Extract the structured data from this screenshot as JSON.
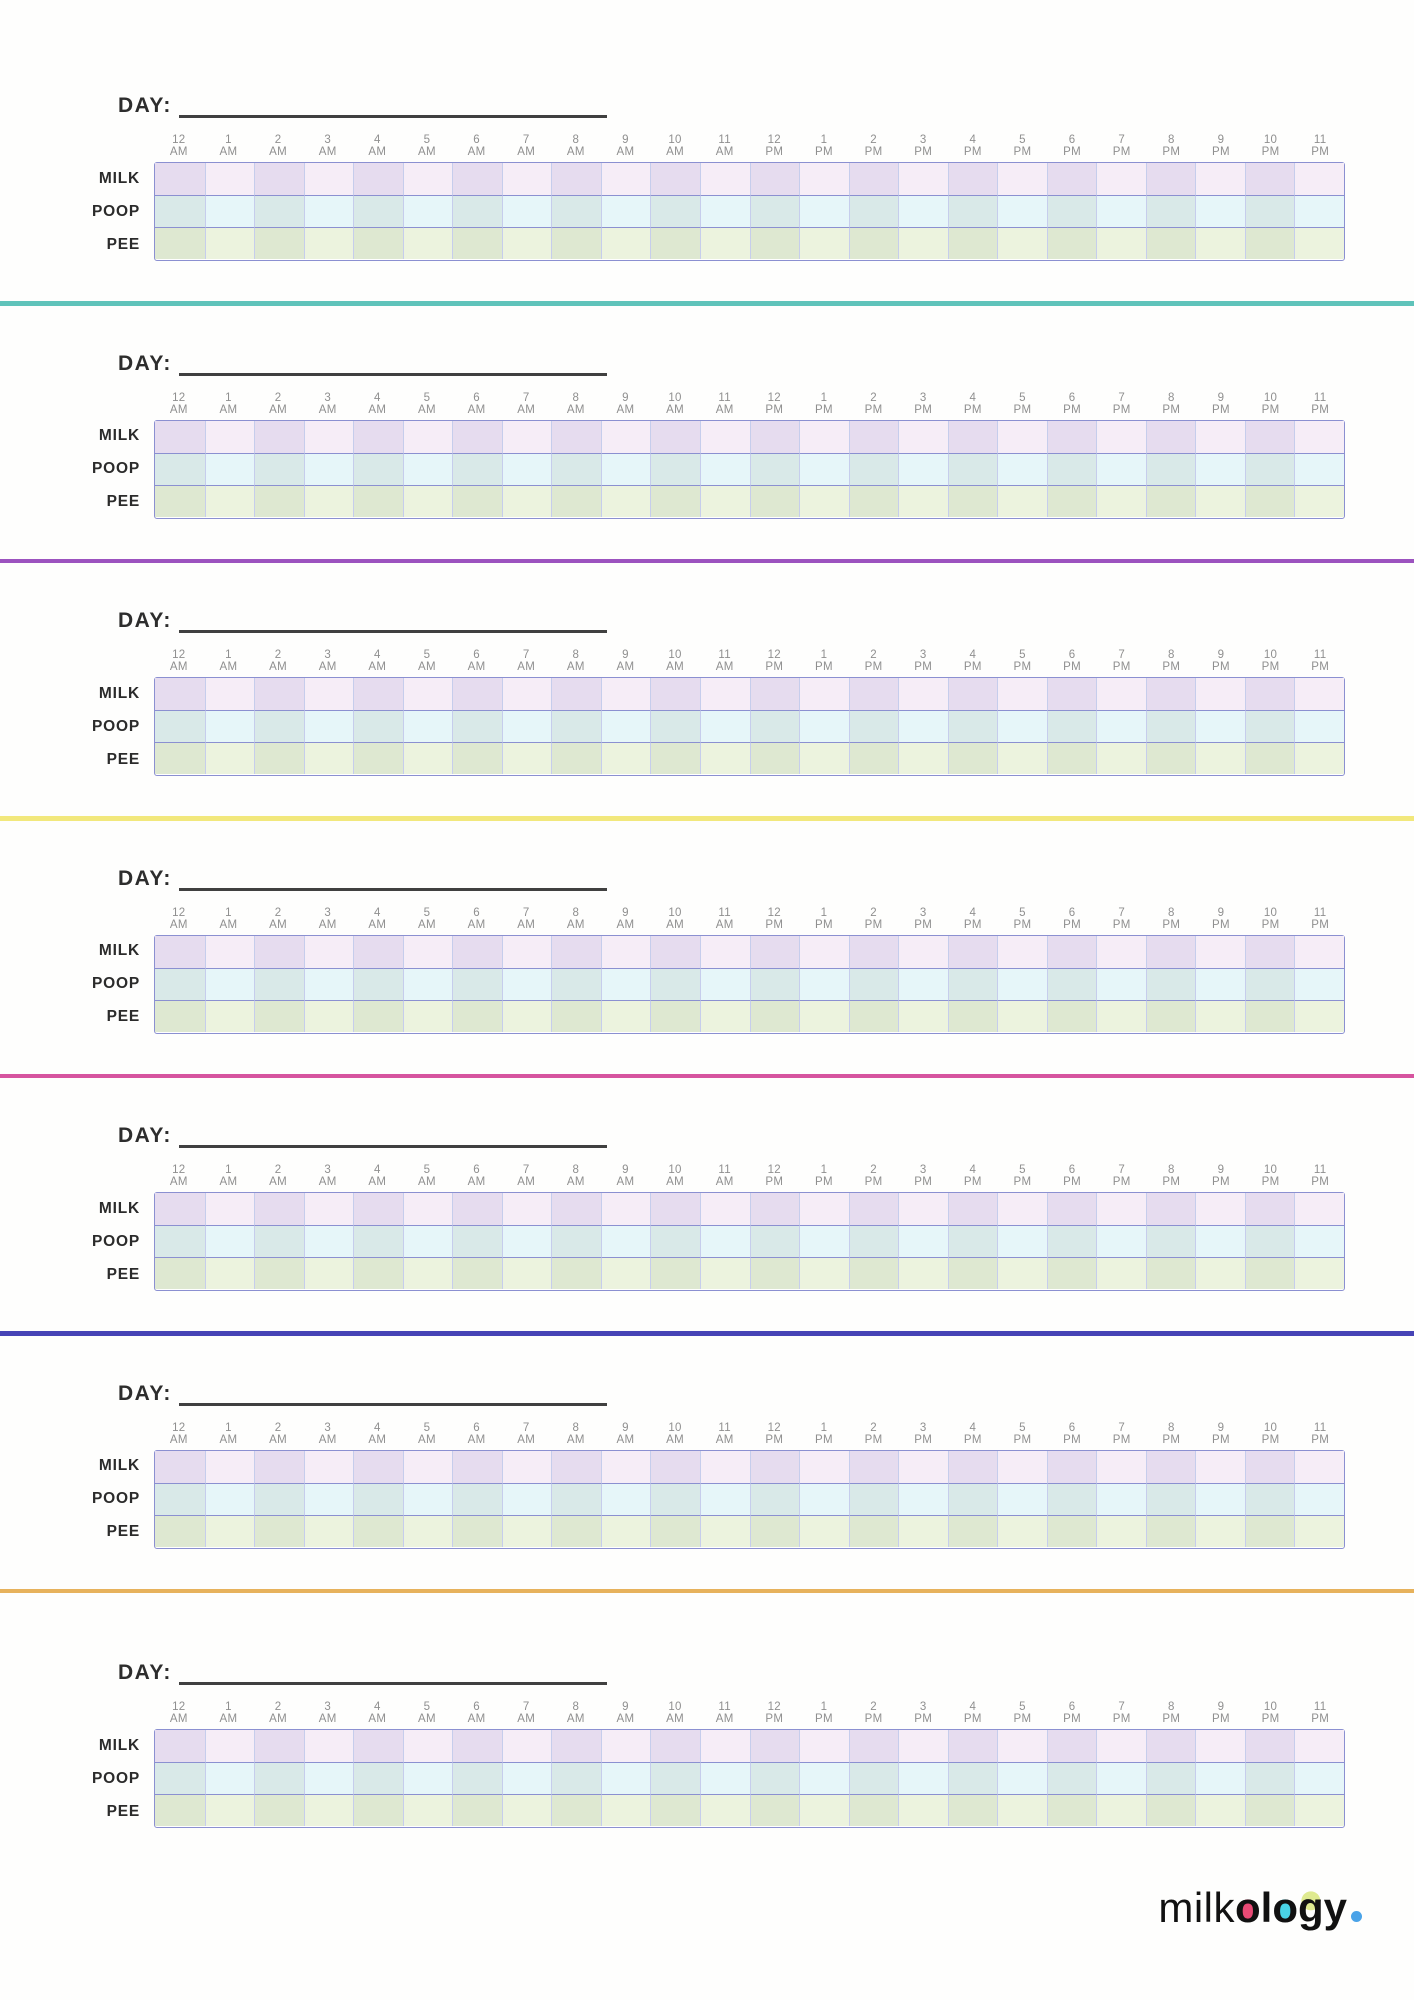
{
  "form": {
    "day_label": "DAY:",
    "rows": [
      "MILK",
      "POOP",
      "PEE"
    ],
    "row_keys": [
      "milk",
      "poop",
      "pee"
    ],
    "hours": [
      {
        "h": "12",
        "m": "AM"
      },
      {
        "h": "1",
        "m": "AM"
      },
      {
        "h": "2",
        "m": "AM"
      },
      {
        "h": "3",
        "m": "AM"
      },
      {
        "h": "4",
        "m": "AM"
      },
      {
        "h": "5",
        "m": "AM"
      },
      {
        "h": "6",
        "m": "AM"
      },
      {
        "h": "7",
        "m": "AM"
      },
      {
        "h": "8",
        "m": "AM"
      },
      {
        "h": "9",
        "m": "AM"
      },
      {
        "h": "10",
        "m": "AM"
      },
      {
        "h": "11",
        "m": "AM"
      },
      {
        "h": "12",
        "m": "PM"
      },
      {
        "h": "1",
        "m": "PM"
      },
      {
        "h": "2",
        "m": "PM"
      },
      {
        "h": "3",
        "m": "PM"
      },
      {
        "h": "4",
        "m": "PM"
      },
      {
        "h": "5",
        "m": "PM"
      },
      {
        "h": "6",
        "m": "PM"
      },
      {
        "h": "7",
        "m": "PM"
      },
      {
        "h": "8",
        "m": "PM"
      },
      {
        "h": "9",
        "m": "PM"
      },
      {
        "h": "10",
        "m": "PM"
      },
      {
        "h": "11",
        "m": "PM"
      }
    ],
    "sections": [
      {
        "divider_color": "#5fc3ba"
      },
      {
        "divider_color": "#9c53bf"
      },
      {
        "divider_color": "#f2e87c"
      },
      {
        "divider_color": "#d6549f"
      },
      {
        "divider_color": "#4744b6"
      },
      {
        "divider_color": "#e7b25c"
      },
      {
        "divider_color": null
      }
    ],
    "colors": {
      "table_border": "#8b90d1",
      "column_border": "#c6cdec",
      "milk_light": "#f6edf7",
      "milk_dark": "#e6dcef",
      "poop_light": "#e6f6f9",
      "poop_dark": "#d9e9e8",
      "pee_light": "#ecf3de",
      "pee_dark": "#dee8d1"
    }
  },
  "logo": {
    "text_pre": "milk",
    "letters": [
      {
        "ch": "o",
        "color": "#e84a75"
      },
      {
        "ch": "l",
        "color": null
      },
      {
        "ch": "o",
        "color": "#49d3e6"
      },
      {
        "ch": "g",
        "color": "#dfea90"
      },
      {
        "ch": "y",
        "color": null
      }
    ],
    "dot_color": "#4aa3e8"
  }
}
